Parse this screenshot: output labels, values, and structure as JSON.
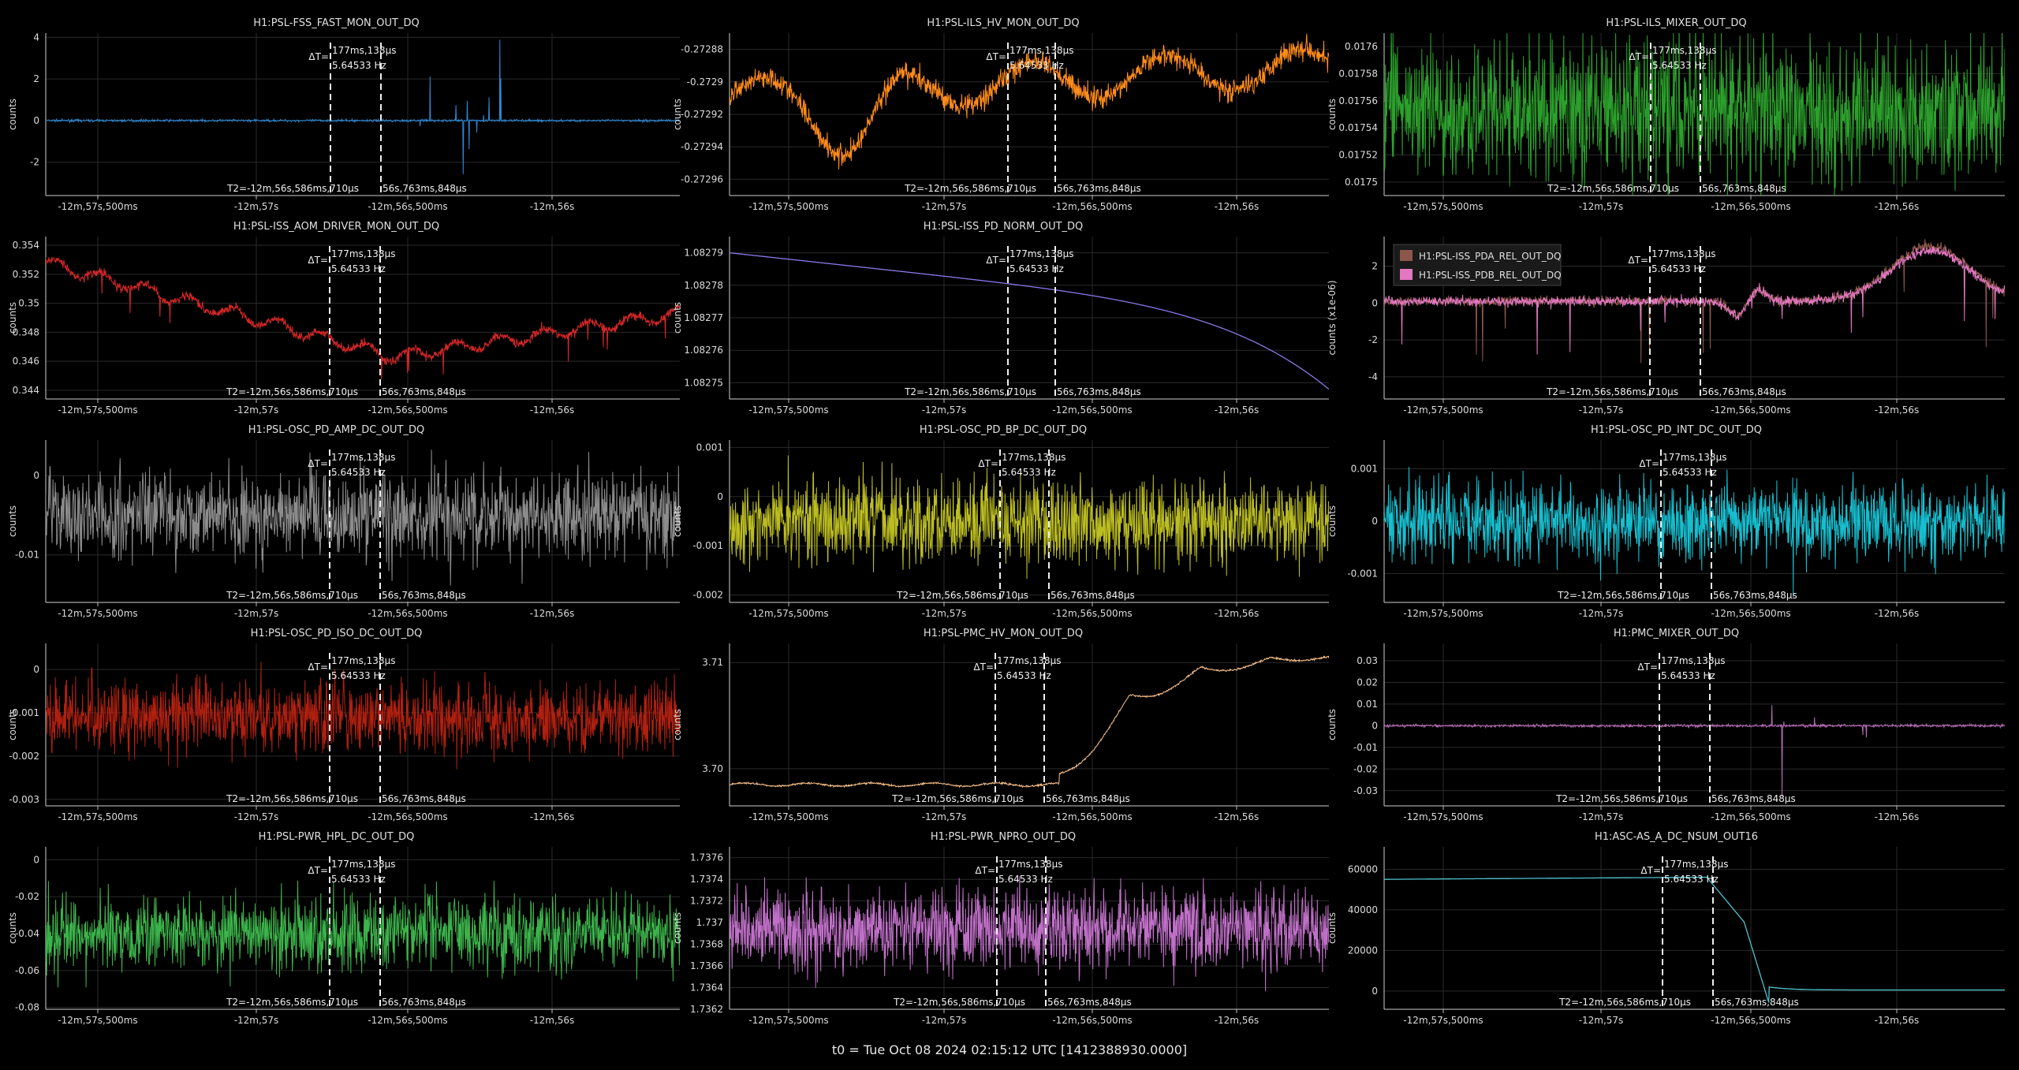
{
  "footer": "t0 = Tue Oct 08 2024 02:15:12 UTC [1412388930.0000]",
  "cursor_labels": {
    "delta_prefix": "ΔT=",
    "delta_time": "177ms,138µs",
    "delta_freq": "5.64533 Hz",
    "t2_label": "T2=-12m,56s,586ms,710µs",
    "t2_tail": "56s,763ms,848µs"
  },
  "ylabel_default": "counts",
  "x_ticks": [
    "-12m,57s,500ms",
    "-12m,57s",
    "-12m,56s,500ms",
    "-12m,56s"
  ],
  "chart_data": [
    {
      "type": "line",
      "title": "H1:PSL-FSS_FAST_MON_OUT_DQ",
      "ylabel": "counts",
      "color": "#2f87d0",
      "ylim": [
        -3.6,
        4.2
      ],
      "yticks": [
        "4",
        "2",
        "0",
        "-2"
      ],
      "ytick_values": [
        4,
        2,
        0,
        -2
      ],
      "pattern": "spikes",
      "level": 0,
      "noise": 0.05,
      "series": [
        {
          "name": "",
          "values": []
        }
      ]
    },
    {
      "type": "line",
      "title": "H1:PSL-ILS_HV_MON_OUT_DQ",
      "ylabel": "counts",
      "color": "#ff8c1a",
      "ylim": [
        -0.27297,
        -0.27287
      ],
      "yticks": [
        "-0.27288",
        "-0.2729",
        "-0.27292",
        "-0.27294",
        "-0.27296"
      ],
      "ytick_values": [
        -0.27288,
        -0.2729,
        -0.27292,
        -0.27294,
        -0.27296
      ],
      "pattern": "wavy",
      "level": -0.27291,
      "noise": 6.5e-06,
      "series": [
        {
          "name": "",
          "values": []
        }
      ]
    },
    {
      "type": "line",
      "title": "H1:PSL-ILS_MIXER_OUT_DQ",
      "ylabel": "counts",
      "color": "#2ca02c",
      "ylim": [
        0.01749,
        0.01761
      ],
      "yticks": [
        "0.0176",
        "0.01758",
        "0.01756",
        "0.01754",
        "0.01752",
        "0.0175"
      ],
      "ytick_values": [
        0.0176,
        0.01758,
        0.01756,
        0.01754,
        0.01752,
        0.0175
      ],
      "pattern": "noise",
      "level": 0.017553,
      "noise": 3e-05,
      "series": [
        {
          "name": "",
          "values": []
        }
      ]
    },
    {
      "type": "line",
      "title": "H1:PSL-ISS_AOM_DRIVER_MON_OUT_DQ",
      "ylabel": "counts",
      "color": "#d62728",
      "ylim": [
        0.3434,
        0.3546
      ],
      "yticks": [
        "0.354",
        "0.352",
        "0.35",
        "0.348",
        "0.346",
        "0.344"
      ],
      "ytick_values": [
        0.354,
        0.352,
        0.35,
        0.348,
        0.346,
        0.344
      ],
      "pattern": "aom",
      "level": 0.35,
      "noise": 0.0003,
      "series": [
        {
          "name": "",
          "values": []
        }
      ]
    },
    {
      "type": "line",
      "title": "H1:PSL-ISS_PD_NORM_OUT_DQ",
      "ylabel": "counts",
      "color": "#8878e8",
      "ylim": [
        1.082745,
        1.082795
      ],
      "yticks": [
        "1.08279",
        "1.08278",
        "1.08277",
        "1.08276",
        "1.08275"
      ],
      "ytick_values": [
        1.08279,
        1.08278,
        1.08277,
        1.08276,
        1.08275
      ],
      "pattern": "decay",
      "level": 1.08279,
      "noise": 0,
      "series": [
        {
          "name": "",
          "values": []
        }
      ]
    },
    {
      "type": "line",
      "title": "",
      "ylabel": "counts (x1e-06)",
      "color": "#8c564b",
      "ylim": [
        -5.2,
        3.6
      ],
      "yticks": [
        "2",
        "0",
        "-2",
        "-4"
      ],
      "ytick_values": [
        2,
        0,
        -2,
        -4
      ],
      "pattern": "pda",
      "level": 0,
      "noise": 0.25,
      "legend": {
        "position": "top-left"
      },
      "series": [
        {
          "name": "H1:PSL-ISS_PDA_REL_OUT_DQ",
          "color": "#8c564b",
          "values": []
        },
        {
          "name": "H1:PSL-ISS_PDB_REL_OUT_DQ",
          "color": "#e377c2",
          "values": []
        }
      ]
    },
    {
      "type": "line",
      "title": "H1:PSL-OSC_PD_AMP_DC_OUT_DQ",
      "ylabel": "counts",
      "color": "#8c8c8c",
      "ylim": [
        -0.016,
        0.0045
      ],
      "yticks": [
        "0",
        "-0.01"
      ],
      "ytick_values": [
        0,
        -0.01
      ],
      "pattern": "noise",
      "level": -0.005,
      "noise": 0.0032,
      "series": [
        {
          "name": "",
          "values": []
        }
      ]
    },
    {
      "type": "line",
      "title": "H1:PSL-OSC_PD_BP_DC_OUT_DQ",
      "ylabel": "counts",
      "color": "#bcbd22",
      "ylim": [
        -0.00215,
        0.00115
      ],
      "yticks": [
        "0.001",
        "0",
        "-0.001",
        "-0.002"
      ],
      "ytick_values": [
        0.001,
        0,
        -0.001,
        -0.002
      ],
      "pattern": "noise",
      "level": -0.0005,
      "noise": 0.0005,
      "series": [
        {
          "name": "",
          "values": []
        }
      ]
    },
    {
      "type": "line",
      "title": "H1:PSL-OSC_PD_INT_DC_OUT_DQ",
      "ylabel": "counts",
      "color": "#17becf",
      "ylim": [
        -0.00155,
        0.00155
      ],
      "yticks": [
        "0.001",
        "0",
        "-0.001"
      ],
      "ytick_values": [
        0.001,
        0,
        -0.001
      ],
      "pattern": "noise",
      "level": 0,
      "noise": 0.00045,
      "series": [
        {
          "name": "",
          "values": []
        }
      ]
    },
    {
      "type": "line",
      "title": "H1:PSL-OSC_PD_ISO_DC_OUT_DQ",
      "ylabel": "counts",
      "color": "#b02010",
      "ylim": [
        -0.00315,
        0.0006
      ],
      "yticks": [
        "0",
        "-0.001",
        "-0.002",
        "-0.003"
      ],
      "ytick_values": [
        0,
        -0.001,
        -0.002,
        -0.003
      ],
      "pattern": "noise",
      "level": -0.0011,
      "noise": 0.0005,
      "series": [
        {
          "name": "",
          "values": []
        }
      ]
    },
    {
      "type": "line",
      "title": "H1:PSL-PMC_HV_MON_OUT_DQ",
      "ylabel": "counts",
      "color": "#f7c08a",
      "ylim": [
        3.6965,
        3.7118
      ],
      "yticks": [
        "3.71",
        "3.70"
      ],
      "ytick_values": [
        3.71,
        3.7
      ],
      "pattern": "pmchv",
      "level": 3.699,
      "noise": 8e-05,
      "series": [
        {
          "name": "",
          "values": []
        }
      ]
    },
    {
      "type": "line",
      "title": "H1:PMC_MIXER_OUT_DQ",
      "ylabel": "counts",
      "color": "#b26ab0",
      "ylim": [
        -0.037,
        0.038
      ],
      "yticks": [
        "0.03",
        "0.02",
        "0.01",
        "0",
        "-0.01",
        "-0.02",
        "-0.03"
      ],
      "ytick_values": [
        0.03,
        0.02,
        0.01,
        0,
        -0.01,
        -0.02,
        -0.03
      ],
      "pattern": "spikes2",
      "level": 0,
      "noise": 0.0006,
      "series": [
        {
          "name": "",
          "values": []
        }
      ]
    },
    {
      "type": "line",
      "title": "H1:PSL-PWR_HPL_DC_OUT_DQ",
      "ylabel": "counts",
      "color": "#3cb44b",
      "ylim": [
        -0.081,
        0.007
      ],
      "yticks": [
        "0",
        "-0.02",
        "-0.04",
        "-0.06",
        "-0.08"
      ],
      "ytick_values": [
        0,
        -0.02,
        -0.04,
        -0.06,
        -0.08
      ],
      "pattern": "noise",
      "level": -0.04,
      "noise": 0.012,
      "series": [
        {
          "name": "",
          "values": []
        }
      ]
    },
    {
      "type": "line",
      "title": "H1:PSL-PWR_NPRO_OUT_DQ",
      "ylabel": "counts",
      "color": "#c070c8",
      "ylim": [
        1.7362,
        1.7377
      ],
      "yticks": [
        "1.7376",
        "1.7374",
        "1.7372",
        "1.737",
        "1.7368",
        "1.7366",
        "1.7364",
        "1.7362"
      ],
      "ytick_values": [
        1.7376,
        1.7374,
        1.7372,
        1.737,
        1.7368,
        1.7366,
        1.7364,
        1.7362
      ],
      "pattern": "noise",
      "level": 1.73695,
      "noise": 0.00022,
      "series": [
        {
          "name": "",
          "values": []
        }
      ]
    },
    {
      "type": "line",
      "title": "H1:ASC-AS_A_DC_NSUM_OUT16",
      "ylabel": "counts",
      "color": "#4fc3d0",
      "ylim": [
        -9000,
        71000
      ],
      "yticks": [
        "60000",
        "40000",
        "20000",
        "0"
      ],
      "ytick_values": [
        60000,
        40000,
        20000,
        0
      ],
      "pattern": "asc",
      "level": 0,
      "noise": 0,
      "series": [
        {
          "name": "",
          "values": []
        }
      ]
    }
  ]
}
